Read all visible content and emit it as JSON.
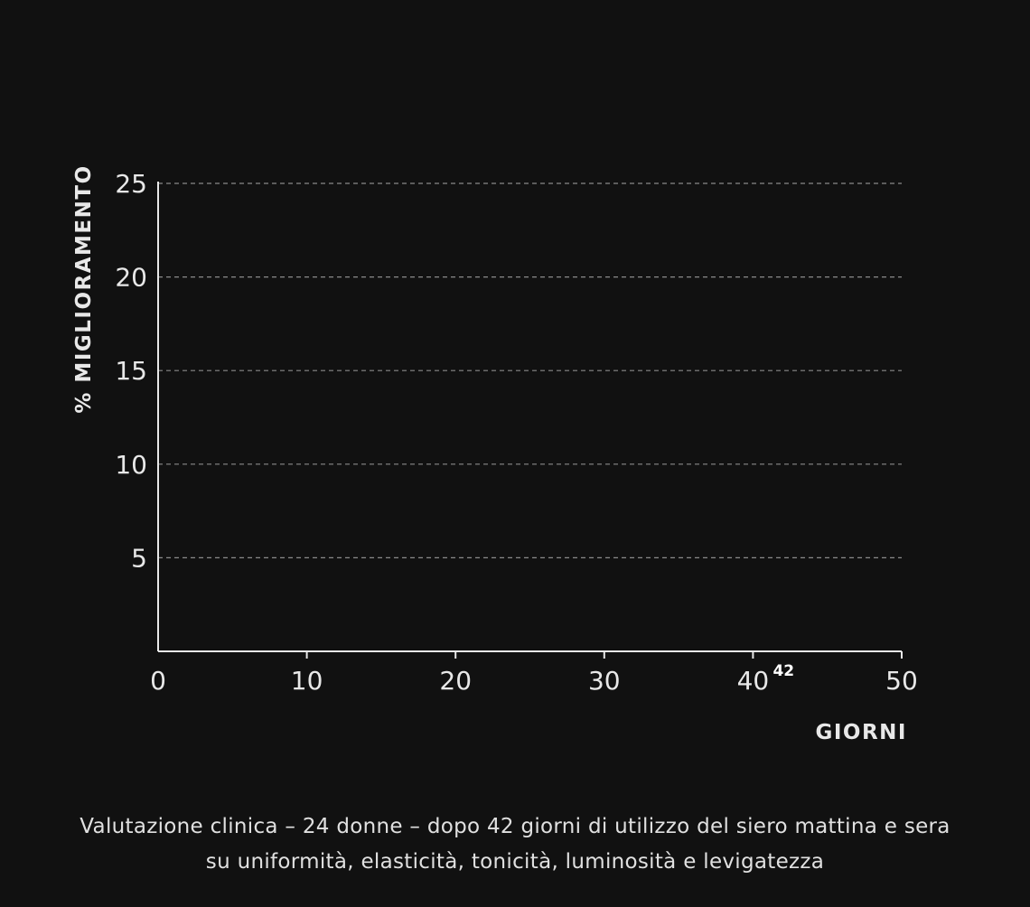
{
  "chart_data": {
    "type": "line",
    "title": "",
    "xlabel": "GIORNI",
    "ylabel": "% MIGLIORAMENTO",
    "xlim": [
      0,
      50
    ],
    "ylim": [
      0,
      25
    ],
    "x_ticks": [
      0,
      10,
      20,
      30,
      40,
      50
    ],
    "y_ticks": [
      5,
      10,
      15,
      20,
      25
    ],
    "grid": "horizontal dashed",
    "x_markers": [
      {
        "x": 42,
        "label": "42"
      }
    ],
    "series": [],
    "colors": {
      "background": "#111111",
      "axis": "#e8e8e8",
      "grid": "#8a8a8a",
      "text": "#e8e8e8"
    }
  },
  "caption": {
    "line1": "Valutazione clinica – 24 donne – dopo 42 giorni di utilizzo del siero mattina e sera",
    "line2": "su uniformità, elasticità, tonicità, luminosità e levigatezza"
  }
}
